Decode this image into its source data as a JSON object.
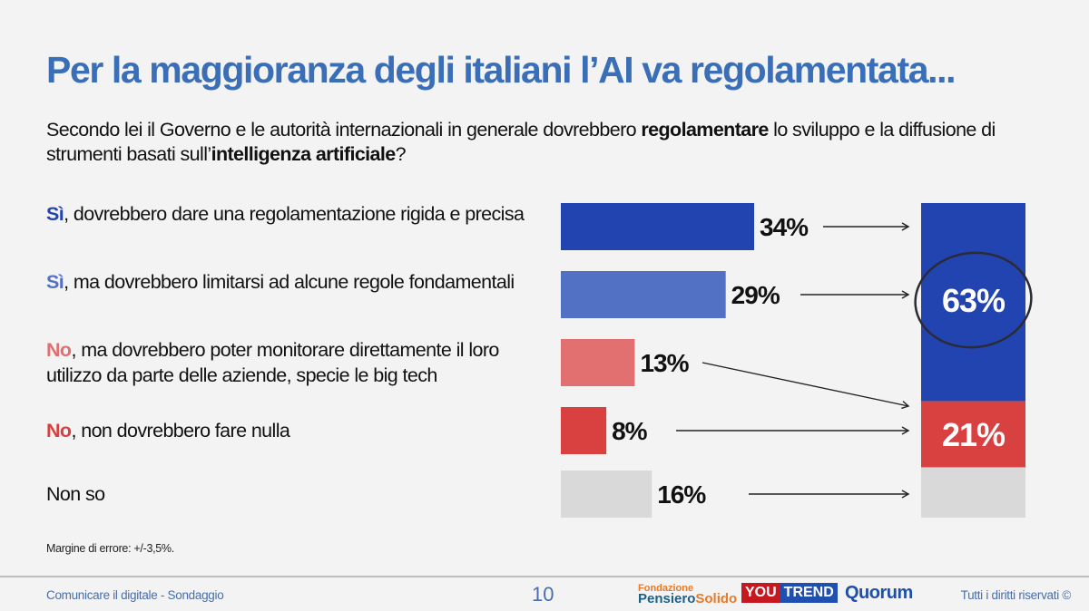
{
  "title": "Per la maggioranza degli italiani l’AI va regolamentata...",
  "question": {
    "part1": "Secondo lei il Governo e le autorità internazionali in generale dovrebbero ",
    "bold1": "regolamentare",
    "part2": " lo sviluppo e la diffusione di strumenti basati sull’",
    "bold2": "intelligenza artificiale",
    "part3": "?"
  },
  "options": [
    {
      "lead": "Sì",
      "rest": ", dovrebbero dare una regolamentazione rigida e precisa",
      "lead_color": "#2244b0"
    },
    {
      "lead": "Sì",
      "rest": ", ma dovrebbero limitarsi ad alcune regole fondamentali",
      "lead_color": "#5270c4"
    },
    {
      "lead": "No",
      "rest": ", ma dovrebbero poter monitorare direttamente il loro utilizzo da parte delle aziende, specie le big tech",
      "lead_color": "#e07070"
    },
    {
      "lead": "No",
      "rest": ", non dovrebbero fare nulla",
      "lead_color": "#d84040"
    },
    {
      "lead": "",
      "rest": "Non so",
      "lead_color": "#111111"
    }
  ],
  "note": "Margine di errore: +/-3,5%.",
  "chart_data": {
    "type": "bar",
    "orientation": "horizontal",
    "categories": [
      "Sì, dovrebbero dare una regolamentazione rigida e precisa",
      "Sì, ma dovrebbero limitarsi ad alcune regole fondamentali",
      "No, ma dovrebbero poter monitorare direttamente il loro utilizzo da parte delle aziende, specie le big tech",
      "No, non dovrebbero fare nulla",
      "Non so"
    ],
    "values": [
      34,
      29,
      13,
      8,
      16
    ],
    "labels": [
      "34%",
      "29%",
      "13%",
      "8%",
      "16%"
    ],
    "colors": [
      "#2244b0",
      "#5270c4",
      "#e37070",
      "#d94141",
      "#d9d9d9"
    ],
    "xlim": [
      0,
      34
    ],
    "stacked_summary": {
      "segments": [
        {
          "name": "Sì",
          "value": 63,
          "label": "63%",
          "color": "#2244b0",
          "highlighted": true
        },
        {
          "name": "No",
          "value": 21,
          "label": "21%",
          "color": "#d94141"
        },
        {
          "name": "Non so",
          "value": 16,
          "label": "",
          "color": "#d9d9d9"
        }
      ],
      "total": 100
    },
    "arrows": [
      {
        "from": 0,
        "to_segment": 0
      },
      {
        "from": 1,
        "to_segment": 0
      },
      {
        "from": 2,
        "to_segment": 1
      },
      {
        "from": 3,
        "to_segment": 1
      },
      {
        "from": 4,
        "to_segment": 2
      }
    ]
  },
  "footer": {
    "left": "Comunicare il digitale - Sondaggio",
    "page": "10",
    "right": "Tutti i diritti riservati ©",
    "logos": {
      "fps_line1": "Fondazione",
      "fps_line2a": "Pensiero",
      "fps_line2b": "Solido",
      "yt_you": "YOU",
      "yt_trend": "TREND",
      "quorum": "Quorum"
    }
  }
}
